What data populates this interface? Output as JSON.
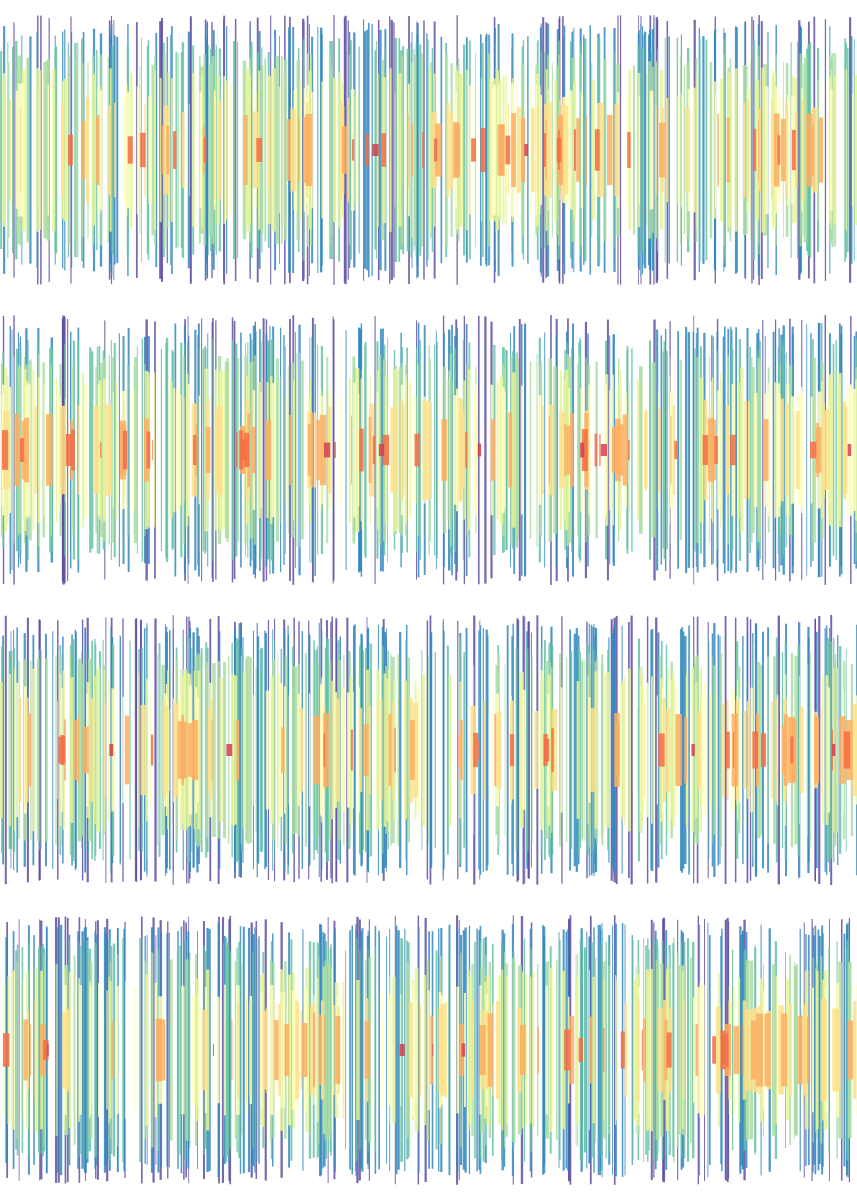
{
  "artwork": {
    "bands": 4,
    "palette": [
      "#9e0142",
      "#d53e4f",
      "#f46d43",
      "#fdae61",
      "#fee08b",
      "#ffffbf",
      "#e6f598",
      "#abdda4",
      "#66c2a5",
      "#3288bd",
      "#5e4fa2"
    ]
  }
}
